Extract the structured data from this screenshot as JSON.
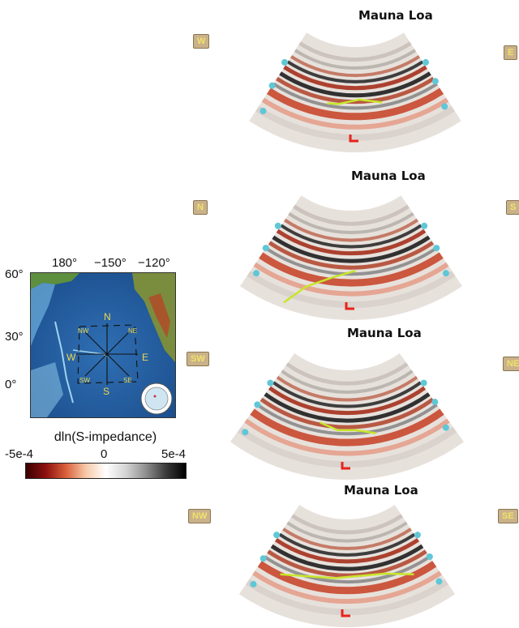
{
  "map": {
    "lon_ticks": [
      "180°",
      "−150°",
      "−120°"
    ],
    "lat_ticks": [
      "60°",
      "30°",
      "0°"
    ],
    "compass": [
      "N",
      "NE",
      "E",
      "SE",
      "S",
      "SW",
      "W",
      "NW"
    ]
  },
  "colorbar": {
    "title": "dln(S-impedance)",
    "min_label": "-5e-4",
    "mid_label": "0",
    "max_label": "5e-4",
    "colors": [
      "#3a0000",
      "#8e1010",
      "#d9603a",
      "#f7c9a8",
      "#ffffff",
      "#d4d4d4",
      "#8f8f8f",
      "#3b3b3b",
      "#000000"
    ]
  },
  "sections": [
    {
      "volcano": "Mauna Loa",
      "left": "W",
      "right": "E"
    },
    {
      "volcano": "Mauna Loa",
      "left": "N",
      "right": "S"
    },
    {
      "volcano": "Mauna Loa",
      "left": "SW",
      "right": "NE"
    },
    {
      "volcano": "Mauna Loa",
      "left": "NW",
      "right": "SE"
    }
  ],
  "colors": {
    "volcano_marker": "#e8231b",
    "interface_line": "#c8e62a",
    "depth_marker": "#5fc7d6",
    "label_box": "#c9b28a",
    "label_text": "#f2e26a"
  }
}
